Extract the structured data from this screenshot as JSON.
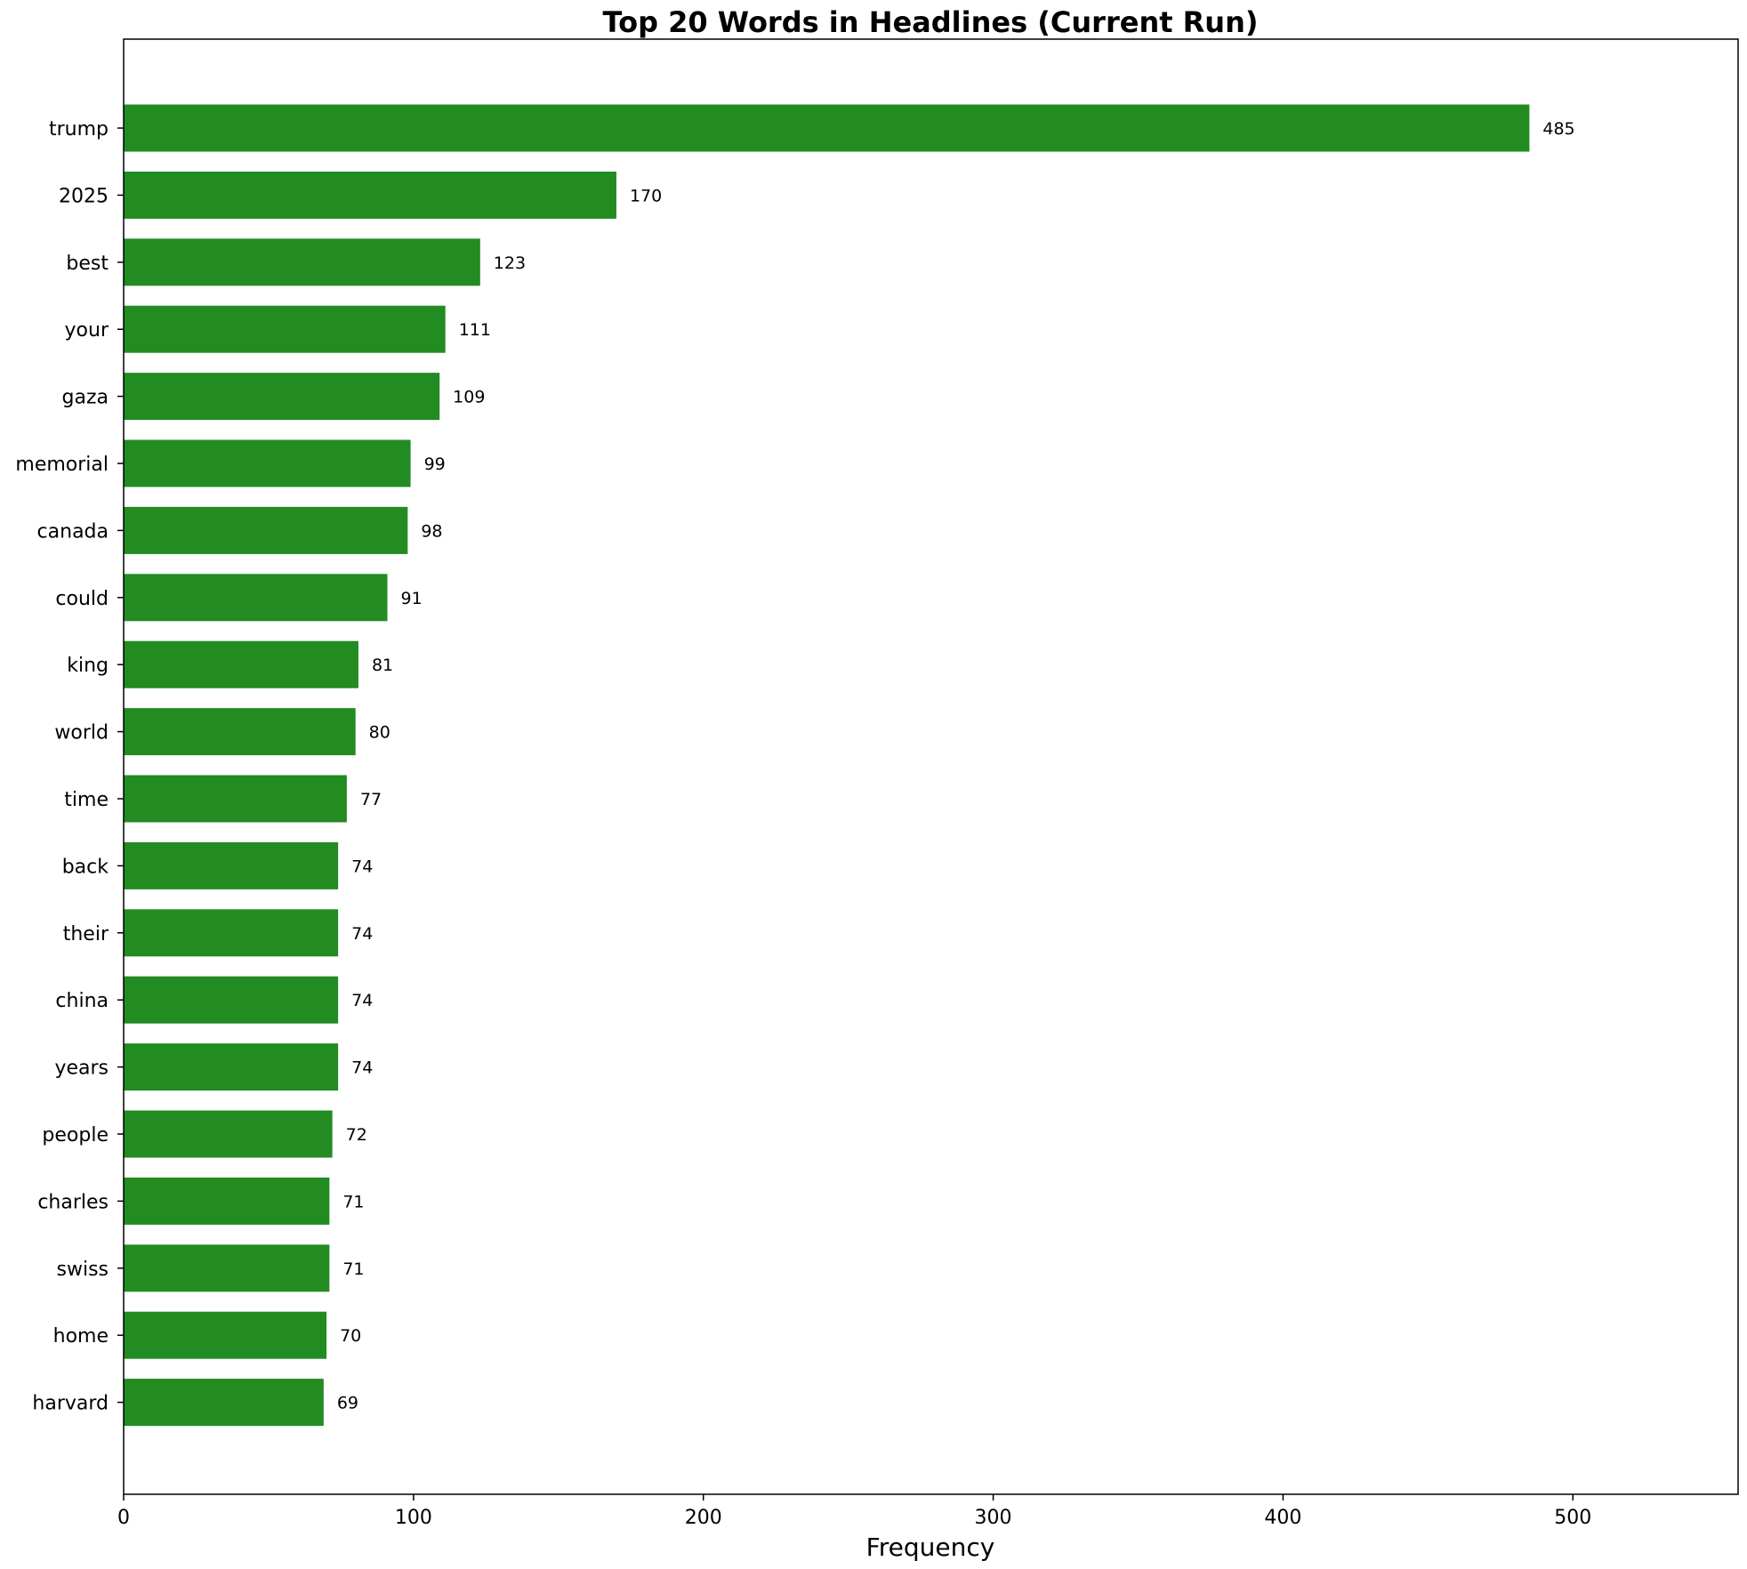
{
  "chart_data": {
    "type": "bar",
    "orientation": "horizontal",
    "title": "Top 20 Words in Headlines (Current Run)",
    "xlabel": "Frequency",
    "ylabel": "",
    "categories": [
      "trump",
      "2025",
      "best",
      "your",
      "gaza",
      "memorial",
      "canada",
      "could",
      "king",
      "world",
      "time",
      "back",
      "their",
      "china",
      "years",
      "people",
      "charles",
      "swiss",
      "home",
      "harvard"
    ],
    "values": [
      485,
      170,
      123,
      111,
      109,
      99,
      98,
      91,
      81,
      80,
      77,
      74,
      74,
      74,
      74,
      72,
      71,
      71,
      70,
      69
    ],
    "data_labels": [
      "485",
      "170",
      "123",
      "111",
      "109",
      "99",
      "98",
      "91",
      "81",
      "80",
      "77",
      "74",
      "74",
      "74",
      "74",
      "72",
      "71",
      "71",
      "70",
      "69"
    ],
    "xlim": [
      0,
      557
    ],
    "xticks": [
      0,
      100,
      200,
      300,
      400,
      500
    ],
    "xtick_labels": [
      "0",
      "100",
      "200",
      "300",
      "400",
      "500"
    ],
    "bar_color": "#228B22",
    "grid": false,
    "legend": "none"
  }
}
